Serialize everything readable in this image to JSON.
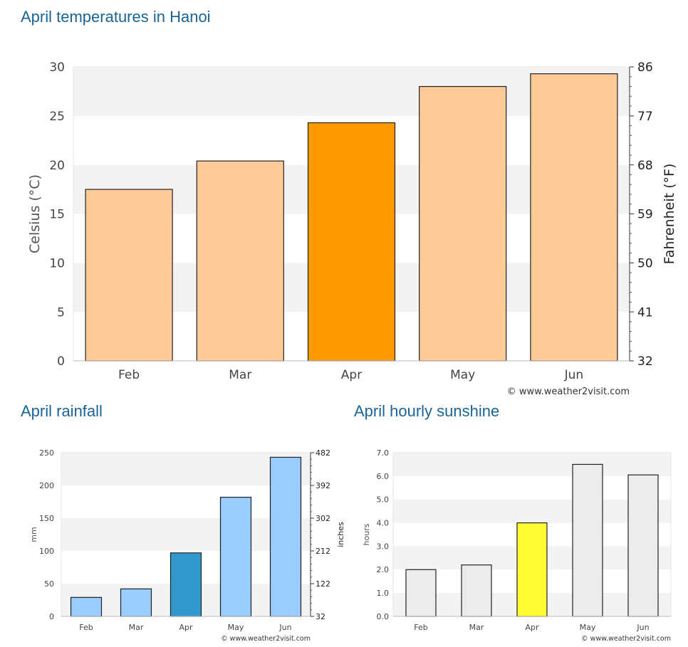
{
  "page": {
    "temp_heading": "April temperatures in Hanoi",
    "rain_heading": "April rainfall",
    "sun_heading": "April hourly sunshine"
  },
  "colors": {
    "heading": "#1a6496",
    "band": "#f3f3f3",
    "temp_normal": "#fecb98",
    "temp_highlight": "#ff9900",
    "rain_normal": "#99ccff",
    "rain_highlight": "#3399cc",
    "sun_normal": "#ececec",
    "sun_highlight": "#ffff33"
  },
  "chart_data": [
    {
      "type": "bar",
      "categories": [
        "Feb",
        "Mar",
        "Apr",
        "May",
        "Jun"
      ],
      "values": [
        17.5,
        20.4,
        24.3,
        28,
        29.3
      ],
      "highlight": "Apr",
      "ylabel": "Celsius (°C)",
      "ylabel_right": "Fahrenheit (°F)",
      "ylim": [
        0,
        30
      ],
      "yticks": [
        "0",
        "5",
        "10",
        "15",
        "20",
        "25",
        "30"
      ],
      "yticks_right": [
        "32",
        "41",
        "50",
        "59",
        "68",
        "77",
        "86"
      ],
      "grid": "alternating bands",
      "credit": "© www.weather2visit.com"
    },
    {
      "type": "bar",
      "categories": [
        "Feb",
        "Mar",
        "Apr",
        "May",
        "Jun"
      ],
      "values": [
        29,
        42,
        97,
        182,
        243
      ],
      "highlight": "Apr",
      "ylabel": "mm",
      "ylabel_right": "inches",
      "ylim": [
        0,
        250
      ],
      "yticks": [
        "0",
        "50",
        "100",
        "150",
        "200",
        "250"
      ],
      "yticks_right": [
        "32",
        "122",
        "212",
        "302",
        "392",
        "482"
      ],
      "grid": "alternating bands",
      "credit": "© www.weather2visit.com"
    },
    {
      "type": "bar",
      "categories": [
        "Feb",
        "Mar",
        "Apr",
        "May",
        "Jun"
      ],
      "values": [
        2.0,
        2.2,
        4.0,
        6.5,
        6.05
      ],
      "highlight": "Apr",
      "ylabel": "hours",
      "ylim": [
        0,
        7
      ],
      "yticks": [
        "0.0",
        "1.0",
        "2.0",
        "3.0",
        "4.0",
        "5.0",
        "6.0",
        "7.0"
      ],
      "grid": "alternating bands",
      "credit": "© www.weather2visit.com"
    }
  ]
}
